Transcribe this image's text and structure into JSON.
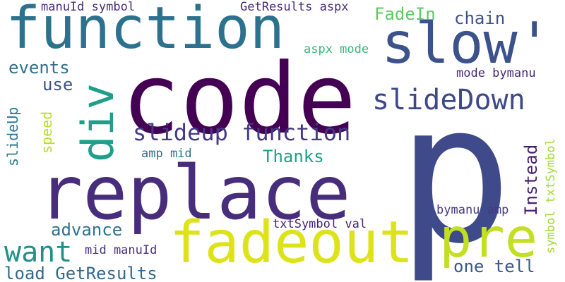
{
  "words": [
    {
      "text": "code",
      "color": "#440154"
    },
    {
      "text": "p",
      "color": "#3e4a89"
    },
    {
      "text": "replace",
      "color": "#472d7b"
    },
    {
      "text": "function",
      "color": "#2c728e"
    },
    {
      "text": "fadeout",
      "color": "#dde318"
    },
    {
      "text": "slow'",
      "color": "#3b528b"
    },
    {
      "text": "pre",
      "color": "#c2df23"
    },
    {
      "text": "div",
      "color": "#1f9e89"
    },
    {
      "text": "slideDown",
      "color": "#3e4989"
    },
    {
      "text": "want",
      "color": "#21908d"
    },
    {
      "text": "slideup function",
      "color": "#443983"
    },
    {
      "text": "events",
      "color": "#2d708e"
    },
    {
      "text": "use",
      "color": "#3b528b"
    },
    {
      "text": "FadeIn",
      "color": "#5ec962"
    },
    {
      "text": "chain",
      "color": "#3b528b"
    },
    {
      "text": "Thanks",
      "color": "#1f9e89"
    },
    {
      "text": "advance",
      "color": "#2c728e"
    },
    {
      "text": "load GetResults",
      "color": "#31688e"
    },
    {
      "text": "one tell",
      "color": "#39568c"
    },
    {
      "text": "Instead",
      "color": "#481f70"
    },
    {
      "text": "manuId symbol",
      "color": "#472c7a"
    },
    {
      "text": "GetResults aspx",
      "color": "#472c7a"
    },
    {
      "text": "aspx mode",
      "color": "#35b779"
    },
    {
      "text": "mode bymanu",
      "color": "#482878"
    },
    {
      "text": "slideUp",
      "color": "#2a788e"
    },
    {
      "text": "speed",
      "color": "#b5de2b"
    },
    {
      "text": "amp mid",
      "color": "#2c728e"
    },
    {
      "text": "bymanu amp",
      "color": "#443a83"
    },
    {
      "text": "symbol txtSymbol",
      "color": "#a0da39"
    },
    {
      "text": "txtSymbol val",
      "color": "#482475"
    },
    {
      "text": "mid manuId",
      "color": "#46337e"
    }
  ]
}
